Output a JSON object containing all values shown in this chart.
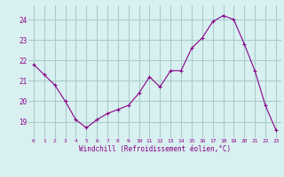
{
  "x": [
    0,
    1,
    2,
    3,
    4,
    5,
    6,
    7,
    8,
    9,
    10,
    11,
    12,
    13,
    14,
    15,
    16,
    17,
    18,
    19,
    20,
    21,
    22,
    23
  ],
  "y": [
    21.8,
    21.3,
    20.8,
    20.0,
    19.1,
    18.7,
    19.1,
    19.4,
    19.6,
    19.8,
    20.4,
    21.2,
    20.7,
    21.5,
    21.5,
    22.6,
    23.1,
    23.9,
    24.2,
    24.0,
    22.8,
    21.5,
    19.8,
    18.6
  ],
  "line_color": "#880088",
  "marker": "+",
  "marker_size": 3,
  "bg_color": "#d8f0f0",
  "grid_color": "#aacccc",
  "xlabel": "Windchill (Refroidissement éolien,°C)",
  "xlabel_color": "#880088",
  "tick_color": "#880088",
  "xlim": [
    -0.5,
    23.5
  ],
  "ylim": [
    18.2,
    24.7
  ],
  "yticks": [
    19,
    20,
    21,
    22,
    23,
    24
  ],
  "xticks": [
    0,
    1,
    2,
    3,
    4,
    5,
    6,
    7,
    8,
    9,
    10,
    11,
    12,
    13,
    14,
    15,
    16,
    17,
    18,
    19,
    20,
    21,
    22,
    23
  ]
}
